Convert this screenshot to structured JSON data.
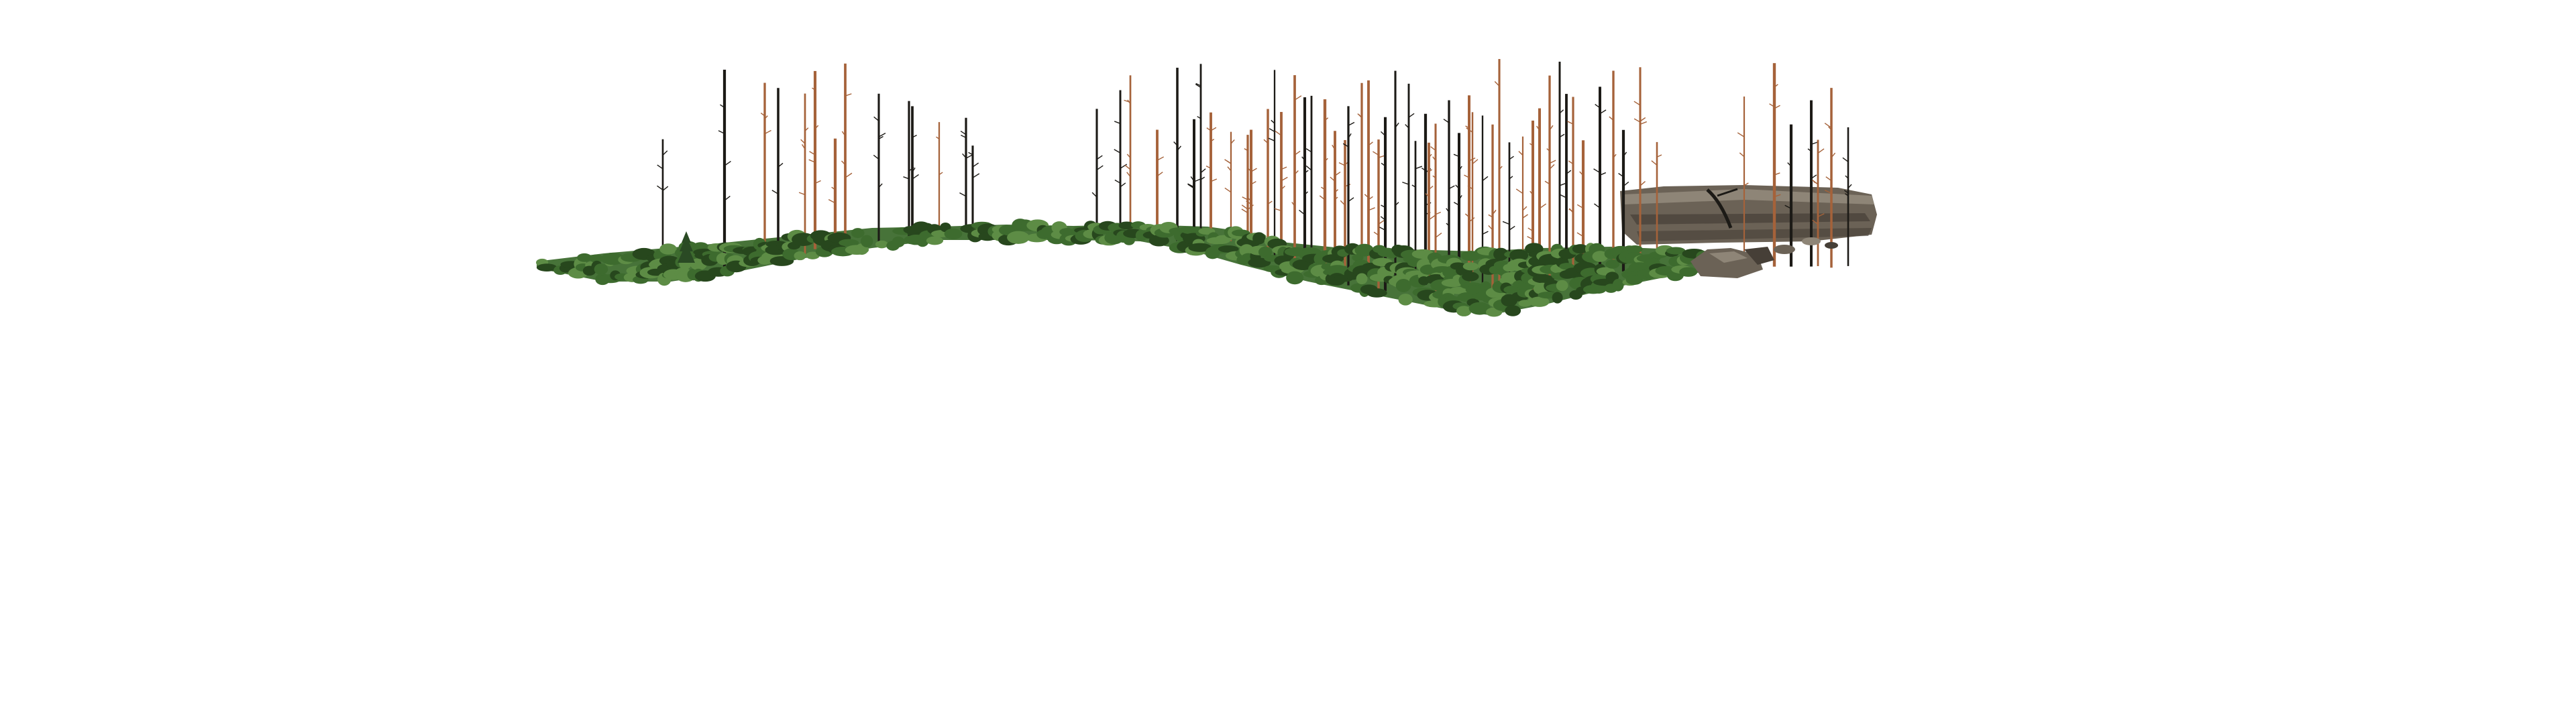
{
  "scene": {
    "background_color": "#ffffff",
    "ground_color": "#3d6b2e",
    "ground_highlight_color": "#5d8c45",
    "ground_shadow_color": "#27471d",
    "dead_trunk_dark_color": "#1c1a16",
    "dead_trunk_orange_color": "#a5623a",
    "rock_color": "#6b6256",
    "rock_light_color": "#8e8577",
    "rock_dark_color": "#463f37",
    "young_pine_color": "#2a4a24",
    "objects": [
      "grass-terrain",
      "shrub-cluster",
      "dead-tree-trunk",
      "young-pine",
      "rock-cliff",
      "boulder-pile",
      "fallen-branch"
    ]
  }
}
